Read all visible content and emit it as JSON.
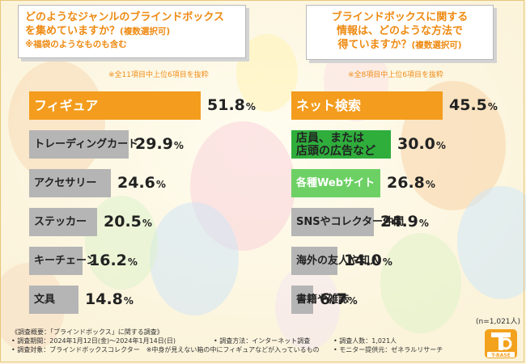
{
  "questions": {
    "left": {
      "line1": "どのようなジャンルのブラインドボックス",
      "line2_main": "を集めていますか？",
      "line2_sub": "(複数選択可)",
      "line3": "※福袋のようなものも含む"
    },
    "right": {
      "line1": "ブラインドボックスに関する",
      "line2": "情報は、どのような方法で",
      "line3_main": "得ていますか？",
      "line3_sub": "(複数選択可)"
    }
  },
  "notes": {
    "left": "※全11項目中上位6項目を抜粋",
    "right": "※全8項目中上位6項目を抜粋"
  },
  "sample_size": "(n=1,021人)",
  "colors": {
    "top": "#f39c1d",
    "green": "#2fae3c",
    "lightgreen": "#6dd064",
    "gray": "#b5b5b5"
  },
  "chart_data": [
    {
      "type": "bar",
      "orientation": "horizontal",
      "unit": "%",
      "categories": [
        "フィギュア",
        "トレーディングカード",
        "アクセサリー",
        "ステッカー",
        "キーチェーン",
        "文具"
      ],
      "values": [
        51.8,
        29.9,
        24.6,
        20.5,
        16.2,
        14.8
      ],
      "value_labels": [
        "51.8",
        "29.9",
        "24.6",
        "20.5",
        "16.2",
        "14.8"
      ],
      "bar_colors": [
        "#f39c1d",
        "#b5b5b5",
        "#b5b5b5",
        "#b5b5b5",
        "#b5b5b5",
        "#b5b5b5"
      ],
      "label_colors": [
        "#ffffff",
        "#222222",
        "#222222",
        "#222222",
        "#222222",
        "#222222"
      ]
    },
    {
      "type": "bar",
      "orientation": "horizontal",
      "unit": "%",
      "categories": [
        "ネット検索",
        "店員、または\n店頭の広告など",
        "各種Webサイト",
        "SNSやコレクター仲間",
        "海外の友人や知人",
        "書籍や雑誌"
      ],
      "values": [
        45.5,
        30.0,
        26.8,
        24.9,
        14.0,
        6.7
      ],
      "value_labels": [
        "45.5",
        "30.0",
        "26.8",
        "24.9",
        "14.0",
        "6.7"
      ],
      "bar_colors": [
        "#f39c1d",
        "#2fae3c",
        "#6dd064",
        "#b5b5b5",
        "#b5b5b5",
        "#b5b5b5"
      ],
      "label_colors": [
        "#ffffff",
        "#222222",
        "#ffffff",
        "#222222",
        "#222222",
        "#222222"
      ]
    }
  ],
  "footer": {
    "title": "《調査概要：「ブラインドボックス」に関する調査》",
    "period": "• 調査期間：2024年1月12日(金)〜2024年1月14日(日)",
    "method": "• 調査方法：インターネット調査",
    "count": "• 調査人数：1,021人",
    "target": "• 調査対象：ブラインドボックスコレクター　※中身が見えない箱の中にフィギュアなどが入っているもの",
    "provider": "• モニター提供元：ゼネラルリサーチ"
  },
  "logo": {
    "text": "T-BASE"
  }
}
